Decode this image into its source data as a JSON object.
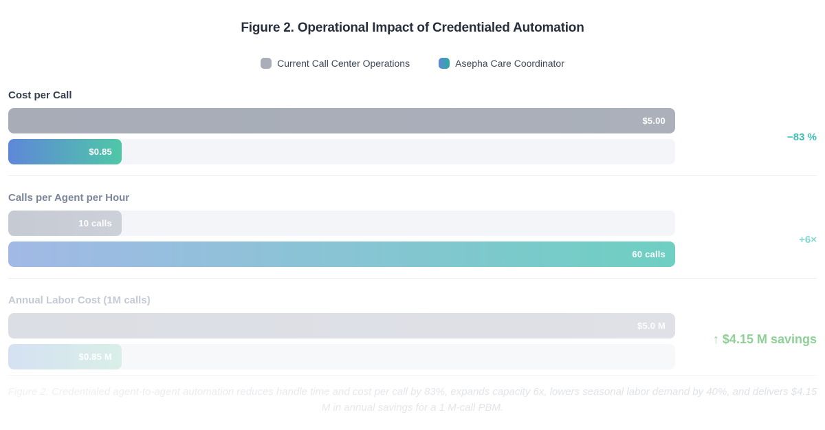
{
  "title": "Figure 2. Operational Impact of Credentialed Automation",
  "legend": [
    {
      "label": "Current Call Center Operations",
      "swatch": "gray-square"
    },
    {
      "label": "Asepha Care Coordinator",
      "swatch": "blue-teal-gradient-square"
    }
  ],
  "colors": {
    "bar-gray": "#a9aeb9",
    "bar-blue": "#5e87d8",
    "bar-teal": "#4fc7a7",
    "track": "#f4f5f8",
    "accent-teal": "#3fbeb3",
    "accent-teal-faded": "#82d7ce",
    "accent-green": "#8ed096"
  },
  "chart_data": {
    "type": "bar",
    "orientation": "horizontal",
    "series": [
      "Current Call Center Operations",
      "Asepha Care Coordinator"
    ],
    "legend_position": "top-center",
    "grid": false,
    "groups": [
      {
        "label": "Cost per Call",
        "bars": [
          {
            "series": "Current Call Center Operations",
            "value": 5.0,
            "display": "$5.00",
            "width_pct": 100
          },
          {
            "series": "Asepha Care Coordinator",
            "value": 0.85,
            "display": "$0.85",
            "width_pct": 17
          }
        ],
        "annotation": "−83 %"
      },
      {
        "label": "Calls per Agent per Hour",
        "bars": [
          {
            "series": "Current Call Center Operations",
            "value": 10,
            "display": "10 calls",
            "width_pct": 17
          },
          {
            "series": "Asepha Care Coordinator",
            "value": 60,
            "display": "60 calls",
            "width_pct": 100
          }
        ],
        "annotation": "+6×"
      },
      {
        "label": "Annual Labor Cost (1M calls)",
        "bars": [
          {
            "series": "Current Call Center Operations",
            "value": 5000000,
            "display": "$5.0 M",
            "width_pct": 100
          },
          {
            "series": "Asepha Care Coordinator",
            "value": 850000,
            "display": "$0.85 M",
            "width_pct": 17
          }
        ],
        "annotation": "↑ $4.15 M savings"
      }
    ]
  },
  "caption": "Figure 2. Credentialed agent-to-agent automation reduces handle time and cost per call by 83%, expands capacity 6x, lowers seasonal labor demand by 40%, and delivers $4.15 M in annual savings for a 1 M-call PBM."
}
